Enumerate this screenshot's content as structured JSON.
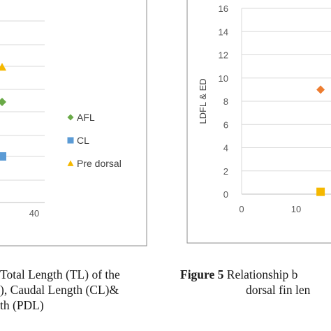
{
  "chart_data": [
    {
      "type": "scatter",
      "title": "",
      "xlabel": "",
      "ylabel": "",
      "x_ticks": [
        "40"
      ],
      "legend_position": "right",
      "grid": "horizontal",
      "series": [
        {
          "name": "AFL",
          "marker": "diamond",
          "color": "#6aaa48"
        },
        {
          "name": "CL",
          "marker": "square",
          "color": "#5b9bd5"
        },
        {
          "name": "Pre dorsal",
          "marker": "triangle",
          "color": "#f5b800"
        }
      ]
    },
    {
      "type": "scatter",
      "title": "",
      "xlabel": "",
      "ylabel": "LDFL & ED",
      "ylim": [
        0,
        16
      ],
      "y_ticks": [
        "0",
        "2",
        "4",
        "6",
        "8",
        "10",
        "12",
        "14",
        "16"
      ],
      "x_ticks": [
        "0",
        "10"
      ],
      "grid": "horizontal",
      "series": [
        {
          "color": "#ed7d31",
          "marker": "diamond",
          "points": [
            {
              "x": 14.5,
              "y": 9
            }
          ]
        },
        {
          "color": "#f5b800",
          "marker": "square",
          "points": [
            {
              "x": 14.5,
              "y": 0.2
            }
          ]
        }
      ]
    }
  ],
  "captions": {
    "left": {
      "line1": "Total Length (TL) of the",
      "line2": "), Caudal Length (CL)&",
      "line3": "th (PDL)"
    },
    "right": {
      "label": "Figure 5",
      "line1": " Relationship b",
      "line2": "dorsal fin len"
    }
  }
}
